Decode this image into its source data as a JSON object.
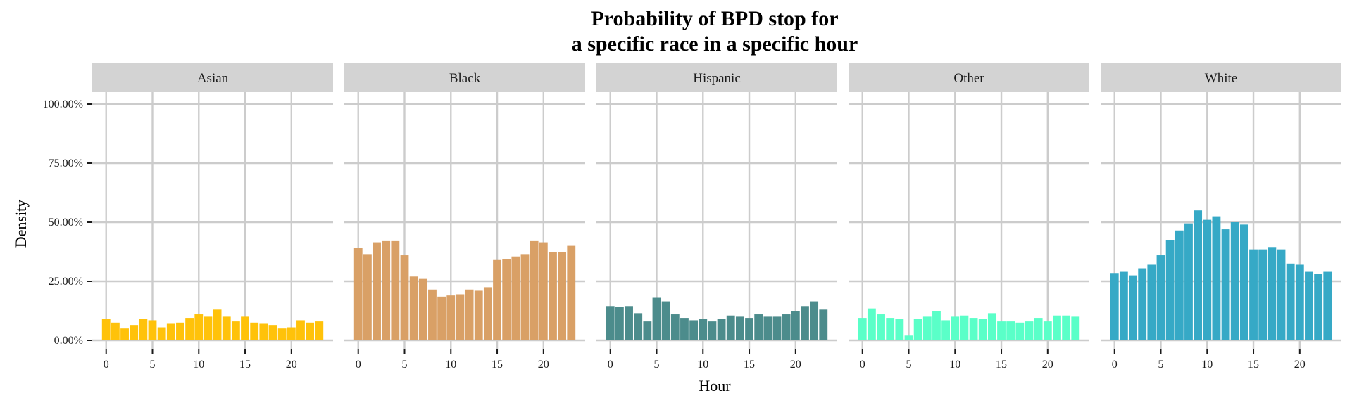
{
  "chart_data": {
    "type": "bar",
    "title": [
      "Probability of BPD stop for",
      "a specific race in a specific hour"
    ],
    "xlabel": "Hour",
    "ylabel": "Density",
    "ylim": [
      0,
      100
    ],
    "yticks": [
      0,
      25,
      50,
      75,
      100
    ],
    "ytick_labels": [
      "0.00%",
      "25.00%",
      "50.00%",
      "75.00%",
      "100.00%"
    ],
    "xlim": [
      -1.5,
      24.5
    ],
    "xticks": [
      0,
      5,
      10,
      15,
      20
    ],
    "xtick_labels": [
      "0",
      "5",
      "10",
      "15",
      "20"
    ],
    "x": [
      0,
      1,
      2,
      3,
      4,
      5,
      6,
      7,
      8,
      9,
      10,
      11,
      12,
      13,
      14,
      15,
      16,
      17,
      18,
      19,
      20,
      21,
      22,
      23
    ],
    "grid": true,
    "legend": "none",
    "panels": [
      {
        "name": "Asian",
        "color": "#FFC20A",
        "values": [
          9.0,
          7.5,
          5.0,
          6.5,
          9.0,
          8.5,
          5.5,
          7.0,
          7.5,
          9.5,
          11.0,
          10.0,
          13.0,
          10.0,
          8.0,
          10.0,
          7.5,
          7.0,
          6.5,
          5.0,
          5.5,
          8.5,
          7.5,
          8.0
        ]
      },
      {
        "name": "Black",
        "color": "#D9A066",
        "values": [
          39.0,
          36.5,
          41.5,
          42.0,
          42.0,
          36.0,
          27.0,
          26.0,
          21.5,
          18.5,
          19.0,
          19.5,
          21.5,
          21.0,
          22.5,
          34.0,
          34.5,
          35.5,
          36.5,
          42.0,
          41.5,
          37.5,
          37.5,
          40.0
        ]
      },
      {
        "name": "Hispanic",
        "color": "#4C8C8C",
        "values": [
          14.5,
          14.0,
          14.5,
          11.5,
          8.0,
          18.0,
          16.5,
          11.0,
          9.5,
          8.5,
          9.0,
          8.0,
          9.0,
          10.5,
          10.0,
          9.5,
          11.0,
          10.0,
          10.0,
          11.0,
          12.5,
          14.5,
          16.5,
          13.0
        ]
      },
      {
        "name": "Other",
        "color": "#5AFFC8",
        "values": [
          9.5,
          13.5,
          11.0,
          9.5,
          9.0,
          2.0,
          9.0,
          10.0,
          12.5,
          8.5,
          10.0,
          10.5,
          9.5,
          9.0,
          11.5,
          8.0,
          8.0,
          7.5,
          8.0,
          9.5,
          8.0,
          10.5,
          10.5,
          10.0
        ]
      },
      {
        "name": "White",
        "color": "#36A9C6",
        "values": [
          28.5,
          29.0,
          27.5,
          30.5,
          32.0,
          36.0,
          42.5,
          46.5,
          49.5,
          55.0,
          51.0,
          52.5,
          47.0,
          50.0,
          49.0,
          38.5,
          38.5,
          39.5,
          38.5,
          32.5,
          32.0,
          29.0,
          28.0,
          29.0
        ]
      }
    ]
  }
}
